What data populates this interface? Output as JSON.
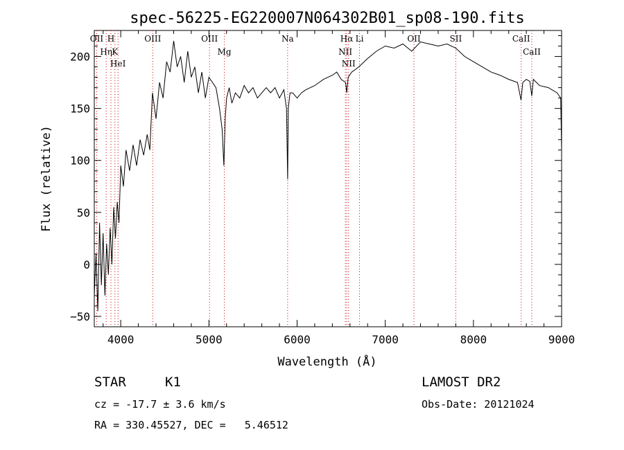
{
  "chart_data": {
    "type": "line",
    "title": "spec-56225-EG220007N064302B01_sp08-190.fits",
    "xlabel": "Wavelength (Å)",
    "ylabel": "Flux (relative)",
    "xlim": [
      3700,
      9000
    ],
    "ylim": [
      -60,
      225
    ],
    "x_ticks": [
      4000,
      5000,
      6000,
      7000,
      8000,
      9000
    ],
    "y_ticks": [
      -50,
      0,
      50,
      100,
      150,
      200
    ],
    "grid": false,
    "legend": "none",
    "line_color": "#000000",
    "marker_line_color": "#cc0000",
    "series": [
      {
        "x": [
          3700,
          3720,
          3740,
          3760,
          3780,
          3800,
          3820,
          3840,
          3860,
          3880,
          3900,
          3920,
          3940,
          3960,
          3980,
          4000,
          4030,
          4060,
          4100,
          4140,
          4180,
          4220,
          4260,
          4300,
          4330,
          4360,
          4400,
          4440,
          4480,
          4520,
          4560,
          4600,
          4640,
          4680,
          4720,
          4760,
          4800,
          4840,
          4880,
          4920,
          4960,
          5000,
          5040,
          5080,
          5120,
          5150,
          5170,
          5185,
          5200,
          5230,
          5260,
          5300,
          5350,
          5400,
          5450,
          5500,
          5550,
          5600,
          5650,
          5700,
          5750,
          5800,
          5850,
          5880,
          5893,
          5900,
          5920,
          5950,
          6000,
          6050,
          6100,
          6150,
          6200,
          6250,
          6300,
          6350,
          6400,
          6450,
          6500,
          6550,
          6563,
          6580,
          6620,
          6700,
          6800,
          6900,
          7000,
          7100,
          7200,
          7300,
          7400,
          7500,
          7600,
          7700,
          7800,
          7900,
          8000,
          8100,
          8200,
          8300,
          8400,
          8500,
          8540,
          8560,
          8600,
          8640,
          8662,
          8680,
          8750,
          8850,
          8950,
          8990,
          9000
        ],
        "y": [
          -30,
          10,
          -45,
          40,
          -20,
          30,
          -30,
          20,
          -10,
          35,
          0,
          55,
          25,
          60,
          40,
          95,
          75,
          110,
          90,
          115,
          95,
          120,
          105,
          125,
          110,
          165,
          140,
          175,
          160,
          195,
          185,
          215,
          190,
          200,
          175,
          205,
          180,
          190,
          165,
          185,
          160,
          180,
          175,
          170,
          150,
          130,
          95,
          140,
          160,
          170,
          155,
          165,
          160,
          172,
          165,
          170,
          160,
          165,
          170,
          165,
          170,
          160,
          168,
          150,
          82,
          150,
          165,
          165,
          160,
          165,
          168,
          170,
          172,
          175,
          178,
          180,
          182,
          185,
          178,
          175,
          165,
          180,
          185,
          190,
          198,
          205,
          210,
          208,
          212,
          205,
          214,
          212,
          210,
          212,
          208,
          200,
          195,
          190,
          185,
          182,
          178,
          175,
          158,
          175,
          178,
          176,
          162,
          178,
          172,
          170,
          165,
          160,
          110
        ]
      }
    ],
    "line_labels": [
      {
        "name": "OII",
        "x": 3727
      },
      {
        "name": "Hη",
        "x": 3835
      },
      {
        "name": "H",
        "x": 3889
      },
      {
        "name": "K",
        "x": 3934
      },
      {
        "name": "HeI",
        "x": 3969
      },
      {
        "name": "OIII",
        "x": 4363
      },
      {
        "name": "OIII",
        "x": 5007
      },
      {
        "name": "Mg",
        "x": 5175
      },
      {
        "name": "Na",
        "x": 5893
      },
      {
        "name": "Hα",
        "x": 6563
      },
      {
        "name": "NII",
        "x": 6548
      },
      {
        "name": "NII",
        "x": 6584
      },
      {
        "name": "Li",
        "x": 6708
      },
      {
        "name": "OII",
        "x": 7325
      },
      {
        "name": "SII",
        "x": 7800
      },
      {
        "name": "CaII",
        "x": 8542
      },
      {
        "name": "CaII",
        "x": 8662
      }
    ]
  },
  "info": {
    "object_class": "STAR",
    "subclass": "K1",
    "survey": "LAMOST DR2",
    "redshift": "cz = -17.7 ± 3.6 km/s",
    "obs_date": "Obs-Date: 20121024",
    "coords": "RA = 330.45527, DEC =   5.46512"
  }
}
